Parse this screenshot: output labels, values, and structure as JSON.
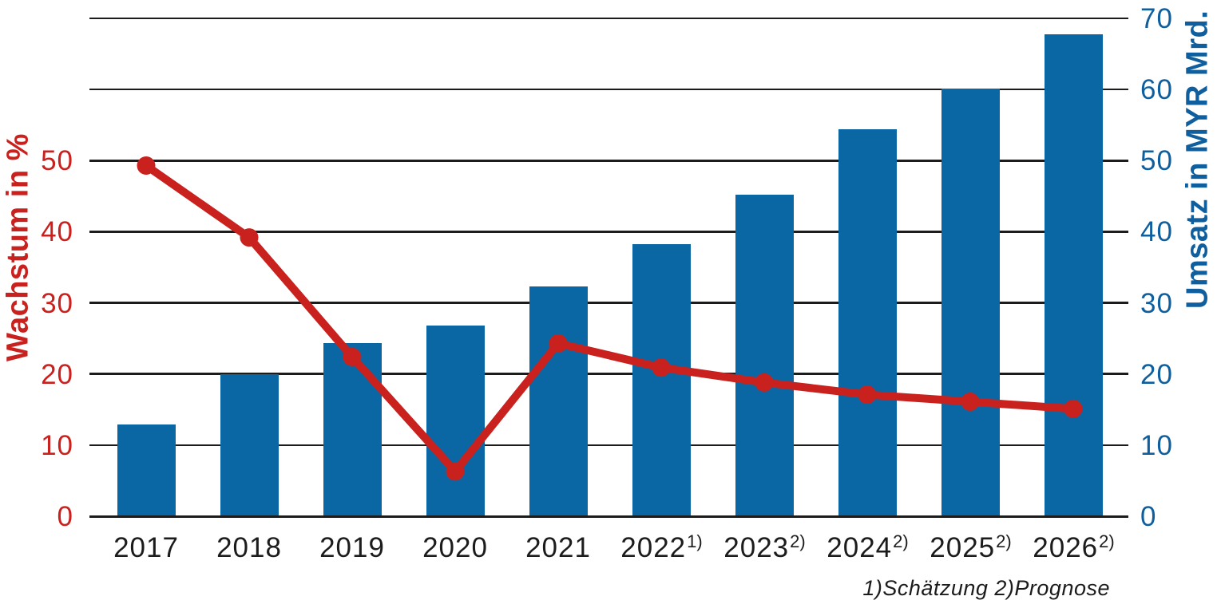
{
  "chart_data": {
    "type": "combo",
    "title": "",
    "categories": [
      "2017",
      "2018",
      "2019",
      "2020",
      "2021",
      "2022",
      "2023",
      "2024",
      "2025",
      "2026"
    ],
    "category_superscripts": [
      "",
      "",
      "",
      "",
      "",
      "1)",
      "2)",
      "2)",
      "2)",
      "2)"
    ],
    "series": [
      {
        "name": "Umsatz in MYR Mrd.",
        "type": "bar",
        "axis": "right",
        "color": "#0a67a3",
        "values": [
          12.9,
          20.0,
          24.3,
          26.8,
          32.3,
          38.2,
          45.2,
          54.4,
          60.1,
          67.8
        ]
      },
      {
        "name": "Wachstum in %",
        "type": "line",
        "axis": "left",
        "color": "#c9211e",
        "values": [
          49.3,
          39.2,
          22.4,
          6.3,
          24.3,
          20.9,
          18.8,
          17.1,
          16.1,
          15.1
        ]
      }
    ],
    "left_axis": {
      "label": "Wachstum in %",
      "color": "#c9211e",
      "ticks": [
        0,
        10,
        20,
        30,
        40,
        50
      ],
      "range": [
        0,
        70
      ]
    },
    "right_axis": {
      "label": "Umsatz in MYR Mrd.",
      "color": "#0f5f9e",
      "ticks": [
        0,
        10,
        20,
        30,
        40,
        50,
        60,
        70
      ],
      "range": [
        0,
        70
      ]
    },
    "footnote": "1)Schätzung 2)Prognose",
    "grid": true,
    "legend_position": "none",
    "gridline_color": "#1c1c1c",
    "background_color": "#ffffff"
  }
}
